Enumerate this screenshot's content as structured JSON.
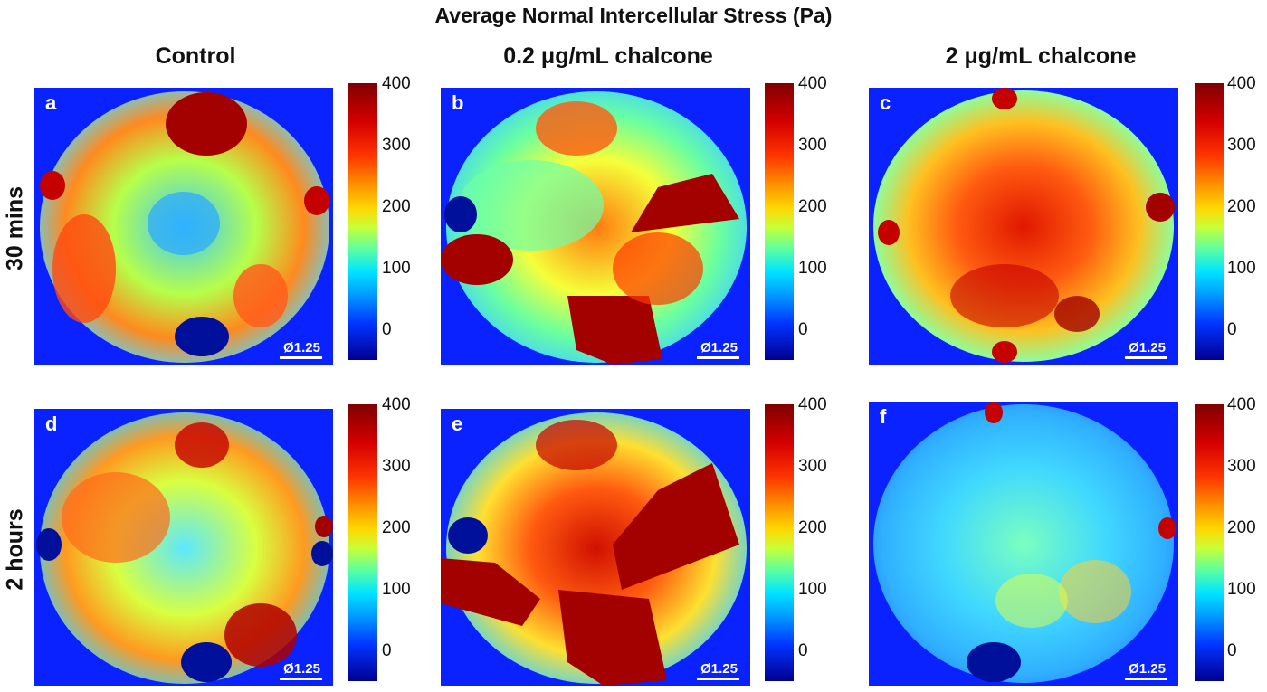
{
  "figure": {
    "title": "Average Normal Intercellular Stress (Pa)",
    "columns": [
      "Control",
      "0.2 μg/mL chalcone",
      "2 μg/mL chalcone"
    ],
    "rows": [
      "30 mins",
      "2 hours"
    ],
    "scale_bar_label": "Ø1.25",
    "colorbar_ticks": [
      "400",
      "300",
      "200",
      "100",
      "0"
    ],
    "colorbar_range": [
      -50,
      400
    ],
    "colormap": "jet",
    "panels": [
      {
        "letter": "a",
        "column": "Control",
        "row": "30 mins"
      },
      {
        "letter": "b",
        "column": "0.2 μg/mL chalcone",
        "row": "30 mins"
      },
      {
        "letter": "c",
        "column": "2 μg/mL chalcone",
        "row": "30 mins"
      },
      {
        "letter": "d",
        "column": "Control",
        "row": "2 hours"
      },
      {
        "letter": "e",
        "column": "0.2 μg/mL chalcone",
        "row": "2 hours"
      },
      {
        "letter": "f",
        "column": "2 μg/mL chalcone",
        "row": "2 hours"
      }
    ]
  }
}
